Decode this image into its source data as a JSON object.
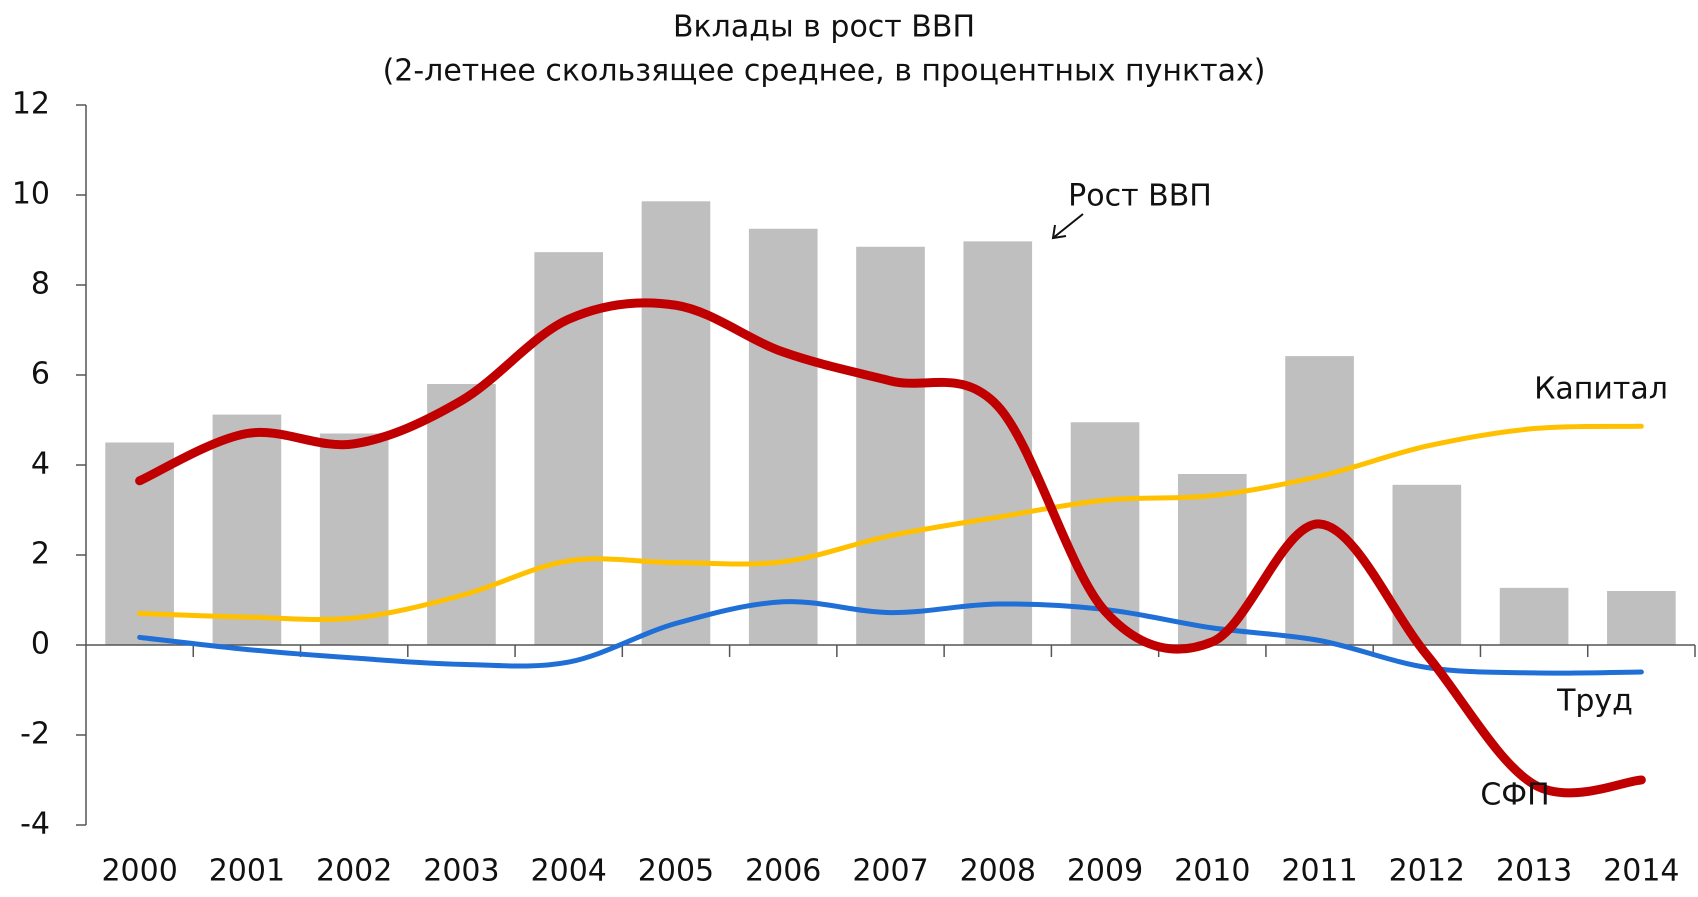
{
  "chart_data": {
    "type": "bar",
    "title": "Вклады в рост ВВП",
    "subtitle": "(2-летнее скользящее среднее, в процентных пунктах)",
    "categories": [
      "2000",
      "2001",
      "2002",
      "2003",
      "2004",
      "2005",
      "2006",
      "2007",
      "2008",
      "2009",
      "2010",
      "2011",
      "2012",
      "2013",
      "2014"
    ],
    "series": [
      {
        "name": "Рост ВВП",
        "type": "bar",
        "color": "#bfbfbf",
        "values": [
          4.5,
          5.12,
          4.7,
          5.8,
          8.73,
          9.86,
          9.25,
          8.85,
          8.97,
          4.95,
          3.8,
          6.42,
          3.56,
          1.27,
          1.2
        ]
      },
      {
        "name": "СФП",
        "type": "line",
        "color": "#c00000",
        "values": [
          3.65,
          4.7,
          4.47,
          5.43,
          7.24,
          7.55,
          6.51,
          5.87,
          5.31,
          0.75,
          0.07,
          2.69,
          -0.22,
          -3.1,
          -3.0
        ]
      },
      {
        "name": "Капитал",
        "type": "line",
        "color": "#ffc000",
        "values": [
          0.7,
          0.62,
          0.6,
          1.1,
          1.87,
          1.83,
          1.85,
          2.43,
          2.84,
          3.22,
          3.32,
          3.75,
          4.42,
          4.81,
          4.86
        ]
      },
      {
        "name": "Труд",
        "type": "line",
        "color": "#1f6fd6",
        "values": [
          0.17,
          -0.1,
          -0.29,
          -0.43,
          -0.38,
          0.48,
          0.96,
          0.72,
          0.91,
          0.79,
          0.38,
          0.1,
          -0.5,
          -0.62,
          -0.6
        ]
      }
    ],
    "ylim": [
      -4,
      12
    ],
    "yticks": [
      -4,
      -2,
      0,
      2,
      4,
      6,
      8,
      10,
      12
    ]
  }
}
